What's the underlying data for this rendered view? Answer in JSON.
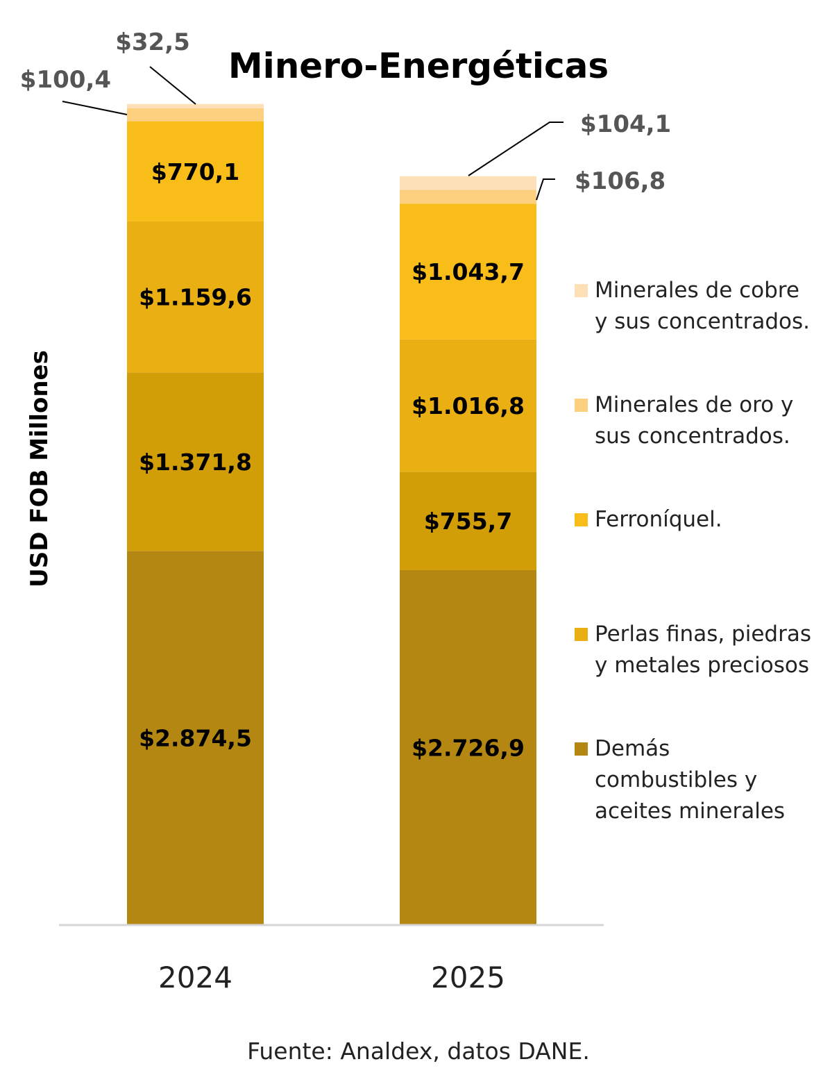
{
  "chart_data": {
    "type": "bar",
    "stacked": true,
    "title": "Minero-Energéticas",
    "ylabel": "USD FOB Millones",
    "xlabel": "",
    "categories": [
      "2024",
      "2025"
    ],
    "series": [
      {
        "name": "Demás combustibles y aceites minerales",
        "legend_lines": [
          "Demás",
          "combustibles y",
          "aceites minerales"
        ],
        "color": "#B38712",
        "values": [
          2874.5,
          2726.9
        ],
        "labels": [
          "$2.874,5",
          "$2.726,9"
        ]
      },
      {
        "color": "#D29E08",
        "values": [
          1371.8,
          755.7
        ],
        "labels": [
          "$1.371,8",
          "$755,7"
        ]
      },
      {
        "name": "Perlas finas, piedras y metales preciosos",
        "legend_lines": [
          "Perlas finas, piedras",
          "y metales preciosos"
        ],
        "color": "#EAAF12",
        "values": [
          1159.6,
          1016.8
        ],
        "labels": [
          "$1.159,6",
          "$1.016,8"
        ]
      },
      {
        "name": "Ferroníquel.",
        "legend_lines": [
          "Ferroníquel."
        ],
        "color": "#F9BD19",
        "values": [
          770.1,
          1043.7
        ],
        "labels": [
          "$770,1",
          "$1.043,7"
        ]
      },
      {
        "name": "Minerales de oro y sus concentrados.",
        "legend_lines": [
          "Minerales de oro y",
          "sus concentrados."
        ],
        "color": "#FDD07F",
        "values": [
          100.4,
          106.8
        ],
        "labels": [
          "$100,4",
          "$106,8"
        ]
      },
      {
        "name": "Minerales de cobre y sus concentrados.",
        "legend_lines": [
          "Minerales de cobre",
          "y sus concentrados."
        ],
        "color": "#FDE0B8",
        "values": [
          32.5,
          104.1
        ],
        "labels": [
          "$32,5",
          "$104,1"
        ]
      }
    ],
    "legend_position": "right",
    "legend_order": [
      5,
      4,
      3,
      2,
      0
    ],
    "grid": false,
    "source": "Fuente: Analdex, datos DANE."
  }
}
